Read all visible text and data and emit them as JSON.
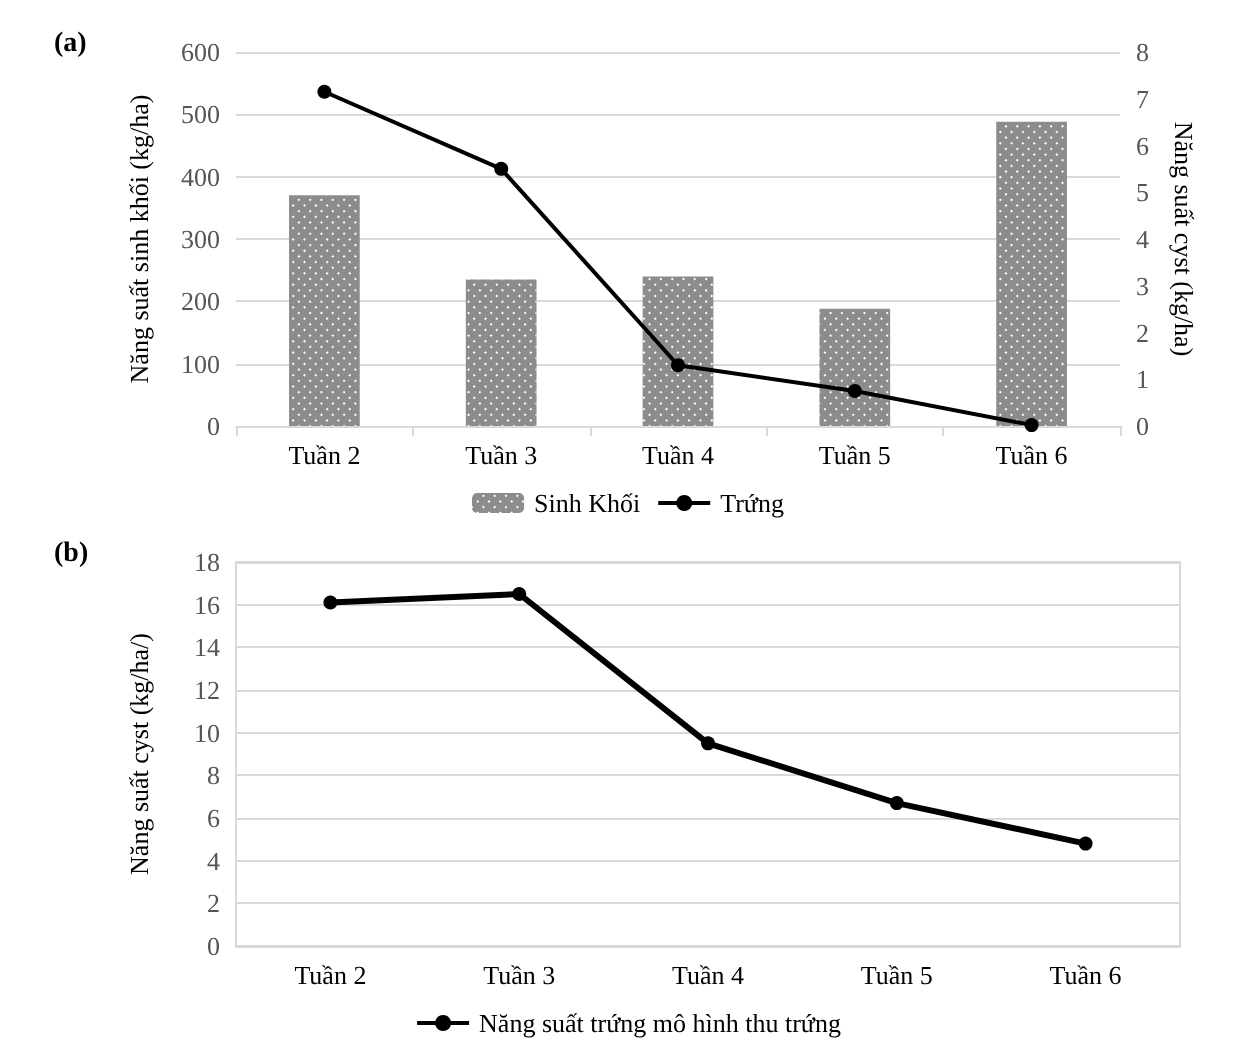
{
  "chart_data": [
    {
      "type": "bar",
      "title": "(a)",
      "categories": [
        "Tuần 2",
        "Tuần 3",
        "Tuần 4",
        "Tuần 5",
        "Tuần 6"
      ],
      "ylabel": "Năng suất sinh khối (kg/ha)",
      "y2label": "Năng suất cyst (kg/ha)",
      "series": [
        {
          "name": "Sinh Khối",
          "color": "#8c8c8c",
          "values": [
            370,
            235,
            240,
            188,
            488
          ]
        },
        {
          "name": "Trứng",
          "type": "line",
          "axis": "y2",
          "color": "#000000",
          "values": [
            7.15,
            5.5,
            1.3,
            0.75,
            0.02
          ]
        }
      ],
      "ylim": [
        0,
        600
      ],
      "yticks": [
        0,
        100,
        200,
        300,
        400,
        500,
        600
      ],
      "y2lim": [
        0,
        8
      ],
      "y2ticks": [
        0,
        1,
        2,
        3,
        4,
        5,
        6,
        7,
        8
      ],
      "grid": "y",
      "legend": "bottom",
      "marker": "circle"
    },
    {
      "type": "line",
      "title": "(b)",
      "categories": [
        "Tuần 2",
        "Tuần 3",
        "Tuần 4",
        "Tuần 5",
        "Tuần 6"
      ],
      "ylabel": "Năng suất cyst (kg/ha/)",
      "series": [
        {
          "name": "Năng suất trứng mô hình thu trứng",
          "color": "#000000",
          "values": [
            16.1,
            16.5,
            9.5,
            6.7,
            4.8
          ]
        }
      ],
      "ylim": [
        0,
        18
      ],
      "yticks": [
        0,
        2,
        4,
        6,
        8,
        10,
        12,
        14,
        16,
        18
      ],
      "grid": "y",
      "legend": "bottom",
      "marker": "circle"
    }
  ]
}
